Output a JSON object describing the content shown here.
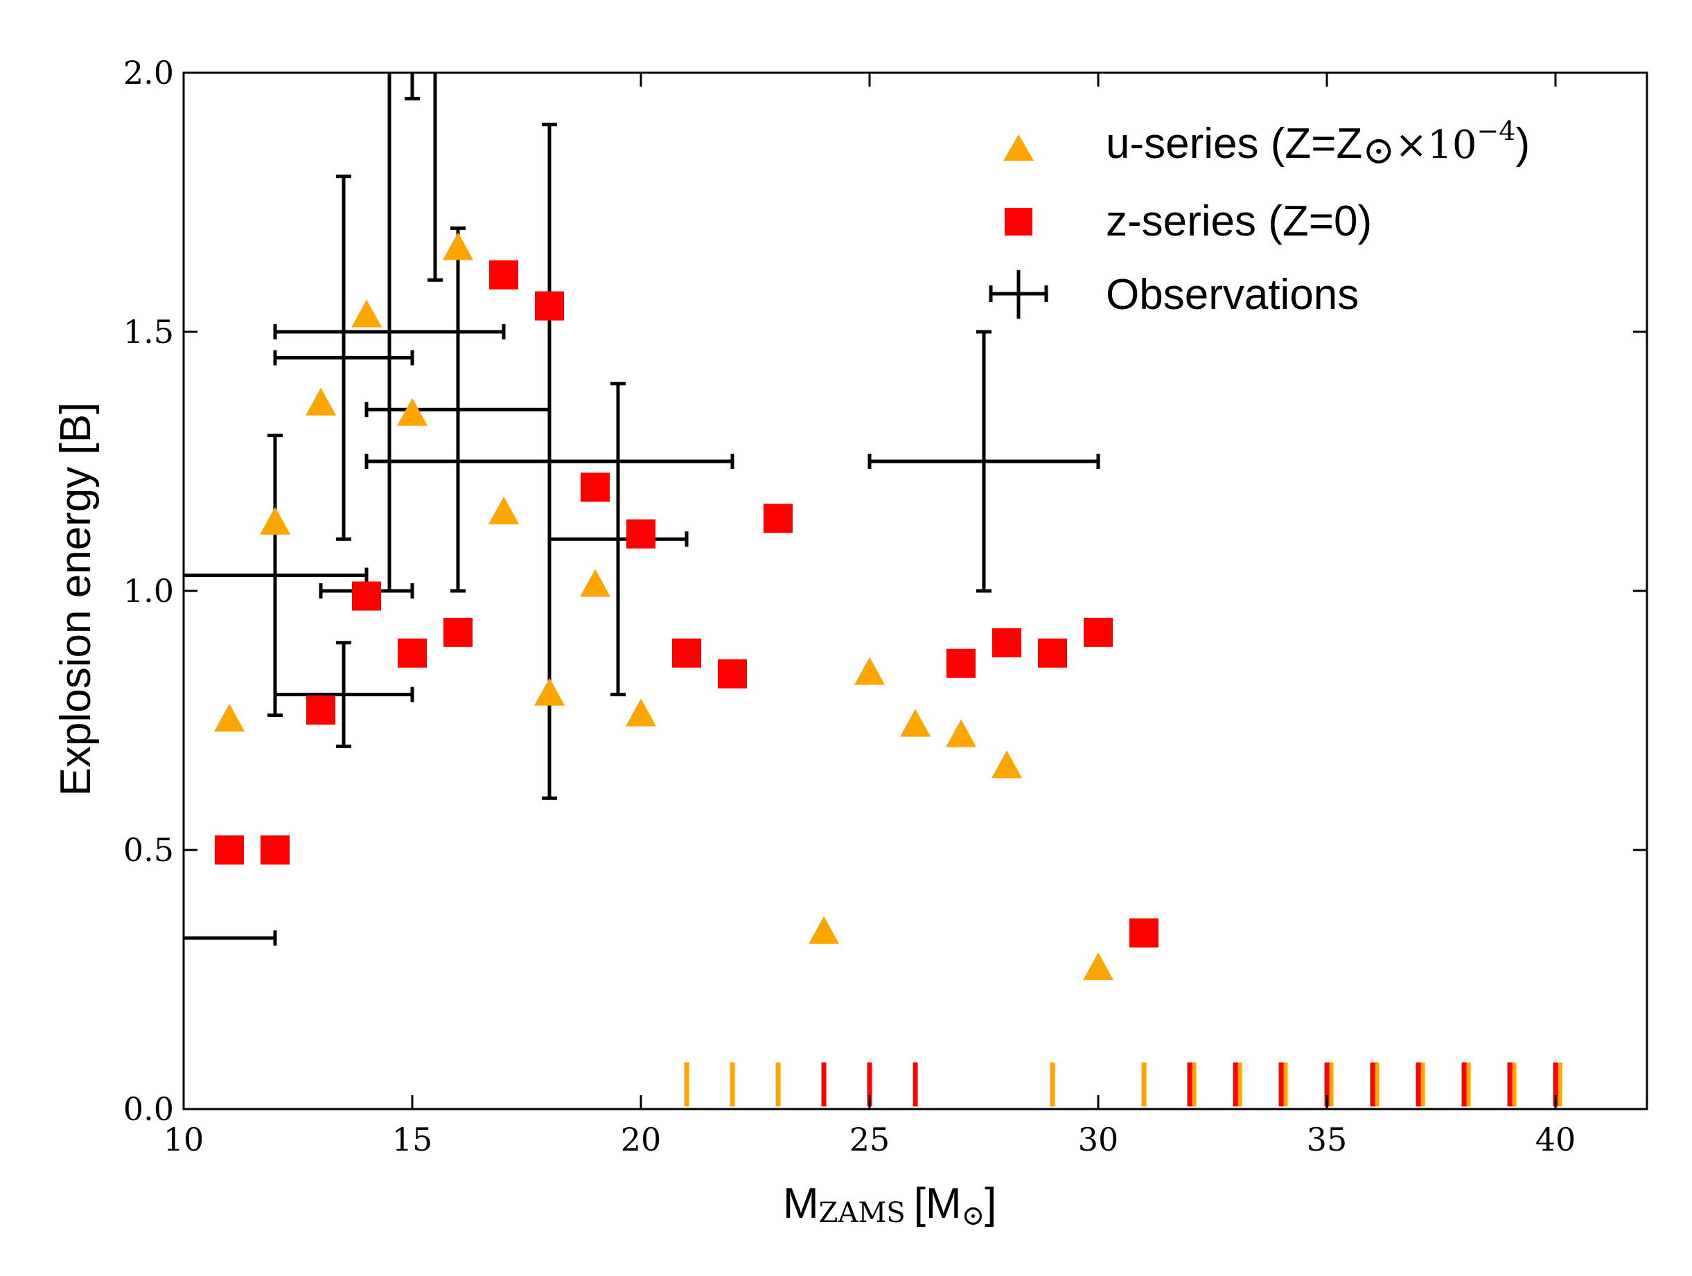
{
  "chart_data": {
    "type": "scatter",
    "xlabel": "M",
    "xlabel_sub": "ZAMS",
    "xlabel_unit": "[M",
    "xlabel_unit_sym": "⊙",
    "xlabel_close": "]",
    "ylabel": "Explosion energy [B]",
    "xlim": [
      10,
      42
    ],
    "ylim": [
      0,
      2.0
    ],
    "xticks": [
      10,
      15,
      20,
      25,
      30,
      35,
      40
    ],
    "xtick_labels": [
      "10",
      "15",
      "20",
      "25",
      "30",
      "35",
      "40"
    ],
    "yticks": [
      0.0,
      0.5,
      1.0,
      1.5,
      2.0
    ],
    "ytick_labels": [
      "0.0",
      "0.5",
      "1.0",
      "1.5",
      "2.0"
    ],
    "legend_position": "top-right",
    "legend": {
      "u_series": {
        "text": "u-series (Z=Z",
        "sym": "⊙",
        "times": "×10",
        "exp": "−4",
        "close": ")"
      },
      "z_series": {
        "text": "z-series (Z=0)"
      },
      "observations": {
        "text": "Observations"
      }
    },
    "series": [
      {
        "name": "u-series",
        "marker": "triangle",
        "color": "#FFA500",
        "points": [
          {
            "x": 11,
            "y": 0.75
          },
          {
            "x": 12,
            "y": 1.13
          },
          {
            "x": 13,
            "y": 1.36
          },
          {
            "x": 14,
            "y": 1.53
          },
          {
            "x": 15,
            "y": 1.34
          },
          {
            "x": 16,
            "y": 1.66
          },
          {
            "x": 17,
            "y": 1.15
          },
          {
            "x": 18,
            "y": 0.8
          },
          {
            "x": 19,
            "y": 1.01
          },
          {
            "x": 20,
            "y": 0.76
          },
          {
            "x": 24,
            "y": 0.34
          },
          {
            "x": 25,
            "y": 0.84
          },
          {
            "x": 26,
            "y": 0.74
          },
          {
            "x": 27,
            "y": 0.72
          },
          {
            "x": 28,
            "y": 0.66
          },
          {
            "x": 30,
            "y": 0.27
          }
        ]
      },
      {
        "name": "z-series",
        "marker": "square",
        "color": "#FF0000",
        "points": [
          {
            "x": 11,
            "y": 0.5
          },
          {
            "x": 12,
            "y": 0.5
          },
          {
            "x": 13,
            "y": 0.77
          },
          {
            "x": 14,
            "y": 0.99
          },
          {
            "x": 15,
            "y": 0.88
          },
          {
            "x": 16,
            "y": 0.92
          },
          {
            "x": 17,
            "y": 1.61
          },
          {
            "x": 18,
            "y": 1.55
          },
          {
            "x": 19,
            "y": 1.2
          },
          {
            "x": 20,
            "y": 1.11
          },
          {
            "x": 21,
            "y": 0.88
          },
          {
            "x": 22,
            "y": 0.84
          },
          {
            "x": 23,
            "y": 1.14
          },
          {
            "x": 27,
            "y": 0.86
          },
          {
            "x": 28,
            "y": 0.9
          },
          {
            "x": 29,
            "y": 0.88
          },
          {
            "x": 30,
            "y": 0.92
          },
          {
            "x": 31,
            "y": 0.34
          }
        ]
      },
      {
        "name": "Observations",
        "marker": "errorbar",
        "color": "#000000",
        "points": [
          {
            "x": 13.5,
            "y": 0.8,
            "xerr": [
              12,
              15
            ],
            "yerr": [
              0.7,
              0.9
            ]
          },
          {
            "x": 12,
            "y": 1.03,
            "xerr": [
              10,
              14
            ],
            "yerr": [
              0.76,
              1.3
            ]
          },
          {
            "x": 13.5,
            "y": 1.45,
            "xerr": [
              12,
              15
            ],
            "yerr": [
              1.1,
              1.8
            ]
          },
          {
            "x": 14.5,
            "y": 1.0,
            "xerr": [
              13,
              15
            ],
            "yerr": [
              1.0,
              2.0
            ]
          },
          {
            "x": 15.5,
            "y": 1.6,
            "xerr": null,
            "yerr": [
              1.6,
              2.0
            ]
          },
          {
            "x": 15,
            "y": 2.0,
            "xerr": null,
            "yerr": [
              1.95,
              2.0
            ]
          },
          {
            "x": 16,
            "y": 1.5,
            "xerr": [
              12,
              17
            ],
            "yerr": [
              1.0,
              1.7
            ]
          },
          {
            "x": 16,
            "y": 1.35,
            "xerr": [
              14,
              18
            ],
            "yerr": null
          },
          {
            "x": 18,
            "y": 1.25,
            "xerr": [
              14,
              22
            ],
            "yerr": [
              0.6,
              1.9
            ]
          },
          {
            "x": 19.5,
            "y": 1.1,
            "xerr": [
              18,
              21
            ],
            "yerr": [
              0.8,
              1.4
            ]
          },
          {
            "x": 27.5,
            "y": 1.25,
            "xerr": [
              25,
              30
            ],
            "yerr": [
              1.0,
              1.5
            ]
          },
          {
            "x": 10,
            "y": 0.33,
            "xerr": [
              10,
              12
            ],
            "yerr": null
          }
        ]
      }
    ],
    "failed_explosions": {
      "u_series_x": [
        21,
        22,
        23,
        29,
        31,
        32,
        33,
        34,
        35,
        36,
        37,
        38,
        39,
        40
      ],
      "z_series_x": [
        24,
        25,
        26,
        32,
        33,
        34,
        35,
        36,
        37,
        38,
        39,
        40
      ],
      "u_color": "#FFA500",
      "z_color": "#FF0000"
    }
  }
}
